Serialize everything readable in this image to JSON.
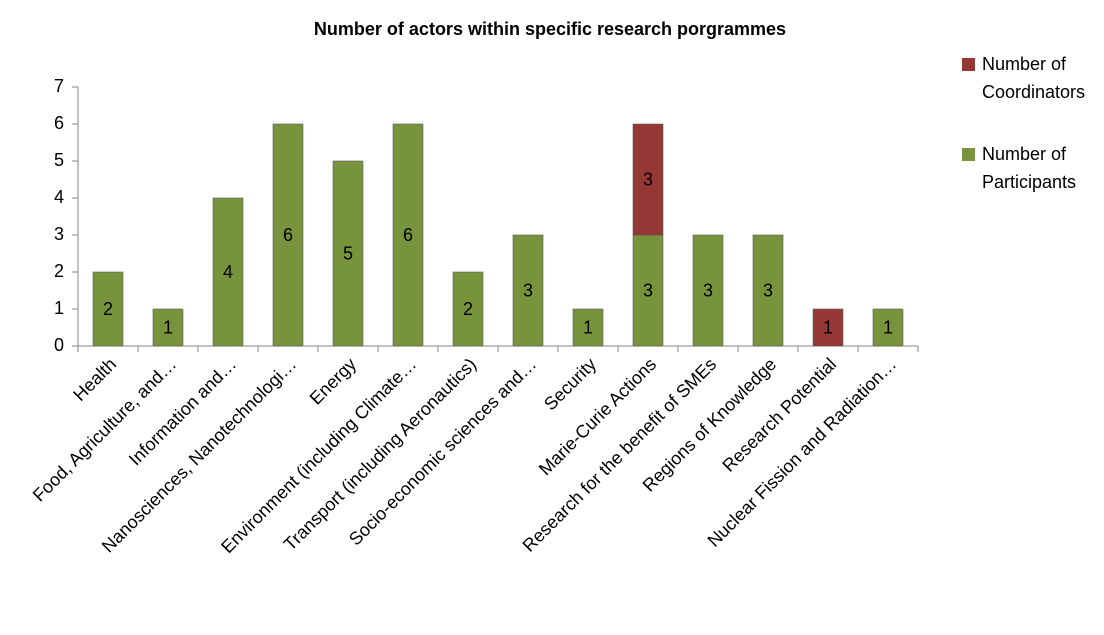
{
  "chart_data": {
    "type": "stacked_bar",
    "title": "Number of actors within specific research porgrammes",
    "categories": [
      "Health",
      "Food, Agriculture, and…",
      "Information and…",
      "Nanosciences, Nanotechnologi…",
      "Energy",
      "Environment (including Climate…",
      "Transport (including Aeronautics)",
      "Socio-economic sciences and…",
      "Security",
      "Marie-Curie Actions",
      "Research for the benefit of SMEs",
      "Regions of Knowledge",
      "Research Potential",
      "Nuclear Fission and Radiation…"
    ],
    "series": [
      {
        "name": "Number of Participants",
        "color": "#77933c",
        "values": [
          2,
          1,
          4,
          6,
          5,
          6,
          2,
          3,
          1,
          3,
          3,
          3,
          0,
          1
        ]
      },
      {
        "name": "Number of Coordinators",
        "color": "#953735",
        "values": [
          0,
          0,
          0,
          0,
          0,
          0,
          0,
          0,
          0,
          3,
          0,
          0,
          1,
          0
        ]
      }
    ],
    "ylim": [
      0,
      7
    ],
    "yticks": [
      0,
      1,
      2,
      3,
      4,
      5,
      6,
      7
    ],
    "legend": "right"
  }
}
